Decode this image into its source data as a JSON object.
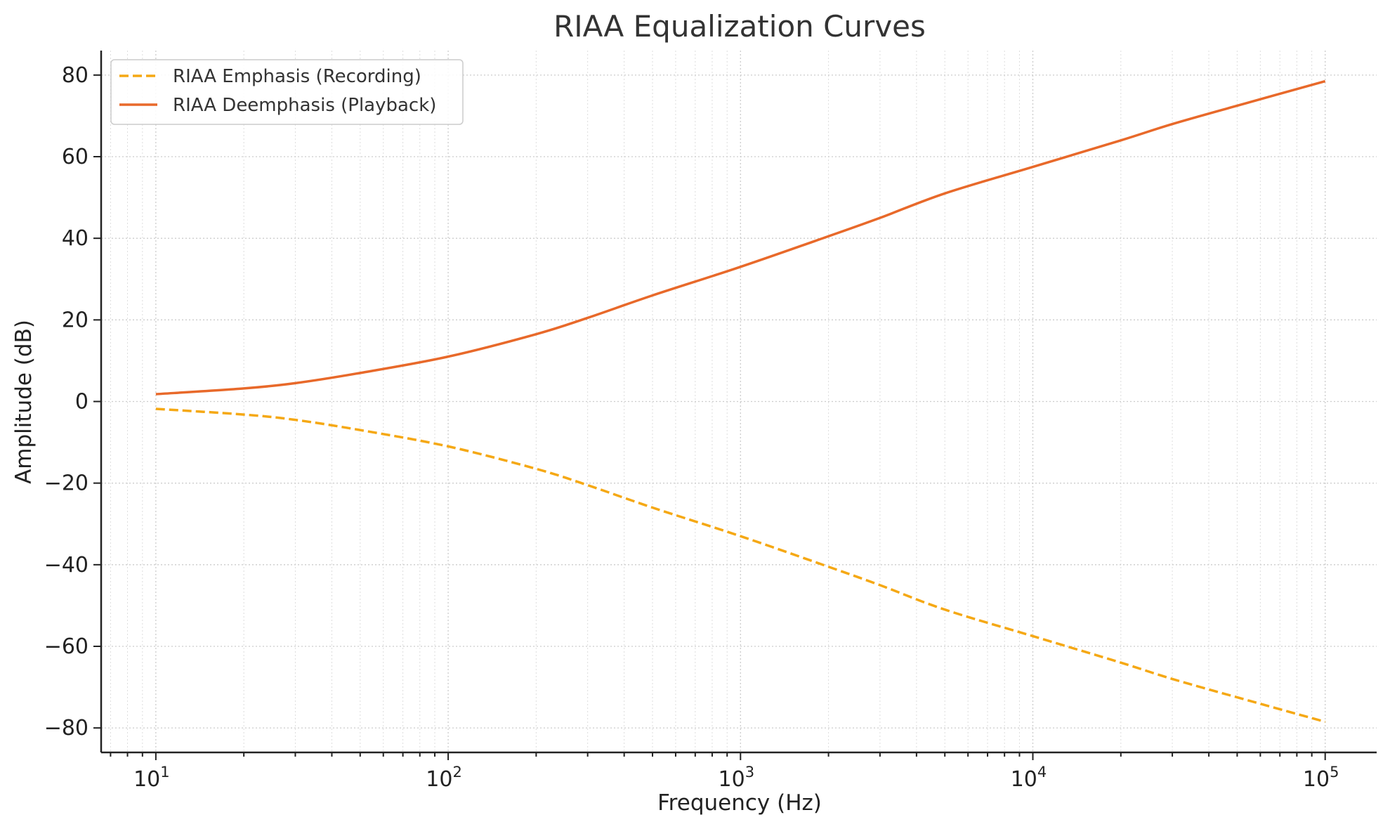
{
  "chart_data": {
    "type": "line",
    "title": "RIAA Equalization Curves",
    "xlabel": "Frequency (Hz)",
    "ylabel": "Amplitude (dB)",
    "xscale": "log",
    "xlim": [
      6.5,
      150000
    ],
    "ylim": [
      -86,
      86
    ],
    "x_ticks": [
      {
        "base": "10",
        "exp": "1",
        "value": 10
      },
      {
        "base": "10",
        "exp": "2",
        "value": 100
      },
      {
        "base": "10",
        "exp": "3",
        "value": 1000
      },
      {
        "base": "10",
        "exp": "4",
        "value": 10000
      },
      {
        "base": "10",
        "exp": "5",
        "value": 100000
      }
    ],
    "y_ticks": [
      {
        "label": "80",
        "value": 80
      },
      {
        "label": "60",
        "value": 60
      },
      {
        "label": "40",
        "value": 40
      },
      {
        "label": "20",
        "value": 20
      },
      {
        "label": "0",
        "value": 0
      },
      {
        "label": "−20",
        "value": -20
      },
      {
        "label": "−40",
        "value": -40
      },
      {
        "label": "−60",
        "value": -60
      },
      {
        "label": "−80",
        "value": -80
      }
    ],
    "grid": true,
    "legend_position": "top-left",
    "x": [
      10,
      20,
      30,
      50,
      100,
      200,
      300,
      500,
      1000,
      2000,
      3000,
      5000,
      10000,
      20000,
      30000,
      50000,
      100000
    ],
    "series": [
      {
        "name": "RIAA Emphasis (Recording)",
        "style": "dashed",
        "color": "#f5a814",
        "values": [
          -1.8,
          -3.2,
          -4.5,
          -7.0,
          -11.0,
          -16.5,
          -20.5,
          -26.0,
          -33.0,
          -40.5,
          -45.0,
          -51.0,
          -57.5,
          -64.0,
          -68.0,
          -72.5,
          -78.5
        ]
      },
      {
        "name": "RIAA Deemphasis (Playback)",
        "style": "solid",
        "color": "#e8692a",
        "values": [
          1.8,
          3.2,
          4.5,
          7.0,
          11.0,
          16.5,
          20.5,
          26.0,
          33.0,
          40.5,
          45.0,
          51.0,
          57.5,
          64.0,
          68.0,
          72.5,
          78.5
        ]
      }
    ]
  }
}
